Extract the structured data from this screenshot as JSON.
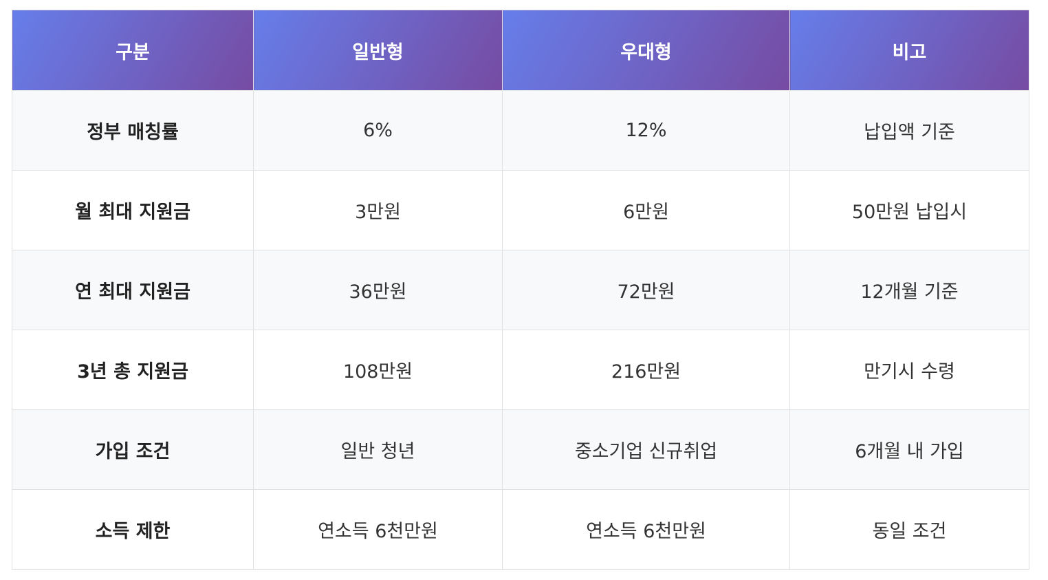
{
  "table": {
    "headers": [
      "구분",
      "일반형",
      "우대형",
      "비고"
    ],
    "rows": [
      [
        "정부 매칭률",
        "6%",
        "12%",
        "납입액 기준"
      ],
      [
        "월 최대 지원금",
        "3만원",
        "6만원",
        "50만원 납입시"
      ],
      [
        "연 최대 지원금",
        "36만원",
        "72만원",
        "12개월 기준"
      ],
      [
        "3년 총 지원금",
        "108만원",
        "216만원",
        "만기시 수령"
      ],
      [
        "가입 조건",
        "일반 청년",
        "중소기업 신규취업",
        "6개월 내 가입"
      ],
      [
        "소득 제한",
        "연소득 6천만원",
        "연소득 6천만원",
        "동일 조건"
      ]
    ]
  },
  "colors": {
    "header_gradient_start": "#667eea",
    "header_gradient_end": "#764ba2",
    "row_alt_background": "#f8f9fa"
  }
}
